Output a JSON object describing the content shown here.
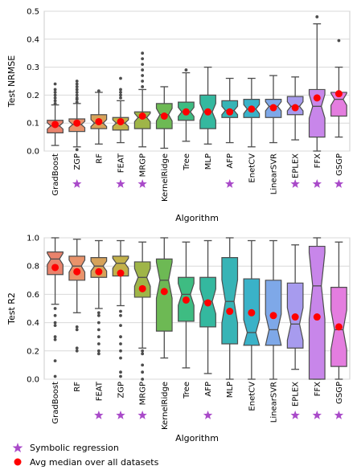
{
  "colors": {
    "median_dot": "#ff0000",
    "symbolic_star": "#a94ac9",
    "box_stroke": "#4d4d4d",
    "palette": [
      "#e9836c",
      "#e9936b",
      "#d6a25a",
      "#c2b14a",
      "#9fb548",
      "#6db954",
      "#3ebc82",
      "#34b89f",
      "#37b4b6",
      "#3ab2c8",
      "#7ea8e8",
      "#a79bee",
      "#c886ea",
      "#e47ddf",
      "#ee83c2"
    ]
  },
  "legend": {
    "symbolic": "Symbolic regression",
    "median": "Avg median over all datasets"
  },
  "chart_data": [
    {
      "type": "box",
      "xlabel": "Algorithm",
      "ylabel": "Test NRMSE",
      "ylim": [
        0,
        0.5
      ],
      "yticks": [
        "0.0",
        "0.1",
        "0.2",
        "0.3",
        "0.4",
        "0.5"
      ],
      "grid": true,
      "notched": true,
      "categories": [
        "GradBoost",
        "ZGP",
        "RF",
        "FEAT",
        "MRGP",
        "KernelRidge",
        "Tree",
        "MLP",
        "AFP",
        "EnetCV",
        "LinearSVR",
        "EPLEX",
        "FFX",
        "GSGP"
      ],
      "symbolic": [
        "ZGP",
        "FEAT",
        "MRGP",
        "AFP",
        "EPLEX",
        "FFX",
        "GSGP"
      ],
      "boxes": [
        {
          "name": "GradBoost",
          "whislo": 0.02,
          "q1": 0.065,
          "med": 0.09,
          "q3": 0.11,
          "whishi": 0.165,
          "mean": 0.095,
          "fliers": [
            0.17,
            0.18,
            0.19,
            0.2,
            0.21,
            0.22,
            0.24
          ]
        },
        {
          "name": "ZGP",
          "whislo": 0.015,
          "q1": 0.07,
          "med": 0.095,
          "q3": 0.115,
          "whishi": 0.17,
          "mean": 0.1,
          "fliers": [
            0.005,
            0.175,
            0.185,
            0.19,
            0.2,
            0.21,
            0.22,
            0.23,
            0.24,
            0.25
          ]
        },
        {
          "name": "RF",
          "whislo": 0.025,
          "q1": 0.08,
          "med": 0.1,
          "q3": 0.13,
          "whishi": 0.21,
          "mean": 0.105,
          "fliers": [
            0.215
          ]
        },
        {
          "name": "FEAT",
          "whislo": 0.03,
          "q1": 0.075,
          "med": 0.1,
          "q3": 0.12,
          "whishi": 0.18,
          "mean": 0.105,
          "fliers": [
            0.19,
            0.2,
            0.21,
            0.22,
            0.26
          ]
        },
        {
          "name": "MRGP",
          "whislo": 0.015,
          "q1": 0.08,
          "med": 0.12,
          "q3": 0.14,
          "whishi": 0.22,
          "mean": 0.125,
          "fliers": [
            0.23,
            0.25,
            0.27,
            0.29,
            0.31,
            0.33,
            0.35
          ]
        },
        {
          "name": "KernelRidge",
          "whislo": 0.01,
          "q1": 0.08,
          "med": 0.13,
          "q3": 0.17,
          "whishi": 0.23,
          "mean": 0.125,
          "fliers": []
        },
        {
          "name": "Tree",
          "whislo": 0.035,
          "q1": 0.11,
          "med": 0.14,
          "q3": 0.175,
          "whishi": 0.28,
          "mean": 0.14,
          "fliers": [
            0.29
          ]
        },
        {
          "name": "MLP",
          "whislo": 0.025,
          "q1": 0.08,
          "med": 0.14,
          "q3": 0.2,
          "whishi": 0.3,
          "mean": 0.14,
          "fliers": []
        },
        {
          "name": "AFP",
          "whislo": 0.03,
          "q1": 0.12,
          "med": 0.145,
          "q3": 0.18,
          "whishi": 0.26,
          "mean": 0.14,
          "fliers": []
        },
        {
          "name": "EnetCV",
          "whislo": 0.015,
          "q1": 0.12,
          "med": 0.15,
          "q3": 0.185,
          "whishi": 0.26,
          "mean": 0.15,
          "fliers": []
        },
        {
          "name": "LinearSVR",
          "whislo": 0.03,
          "q1": 0.12,
          "med": 0.16,
          "q3": 0.185,
          "whishi": 0.27,
          "mean": 0.155,
          "fliers": []
        },
        {
          "name": "EPLEX",
          "whislo": 0.04,
          "q1": 0.13,
          "med": 0.16,
          "q3": 0.195,
          "whishi": 0.265,
          "mean": 0.155,
          "fliers": []
        },
        {
          "name": "FFX",
          "whislo": 0.0,
          "q1": 0.05,
          "med": 0.16,
          "q3": 0.22,
          "whishi": 0.455,
          "mean": 0.19,
          "fliers": [
            0.48
          ]
        },
        {
          "name": "GSGP",
          "whislo": 0.05,
          "q1": 0.125,
          "med": 0.185,
          "q3": 0.21,
          "whishi": 0.3,
          "mean": 0.205,
          "fliers": [
            0.395
          ]
        }
      ]
    },
    {
      "type": "box",
      "xlabel": "Algorithm",
      "ylabel": "Test R2",
      "ylim": [
        0,
        1.0
      ],
      "yticks": [
        "0.0",
        "0.2",
        "0.4",
        "0.6",
        "0.8",
        "1.0"
      ],
      "grid": true,
      "notched": true,
      "categories": [
        "GradBoost",
        "RF",
        "FEAT",
        "ZGP",
        "MRGP",
        "KernelRidge",
        "Tree",
        "AFP",
        "MLP",
        "EnetCV",
        "LinearSVR",
        "EPLEX",
        "FFX",
        "GSGP"
      ],
      "symbolic": [
        "FEAT",
        "ZGP",
        "MRGP",
        "AFP",
        "EPLEX",
        "FFX",
        "GSGP"
      ],
      "boxes": [
        {
          "name": "GradBoost",
          "whislo": 0.53,
          "q1": 0.74,
          "med": 0.85,
          "q3": 0.9,
          "whishi": 1.0,
          "mean": 0.79,
          "fliers": [
            0.5,
            0.45,
            0.4,
            0.38,
            0.3,
            0.28,
            0.13,
            0.02
          ]
        },
        {
          "name": "RF",
          "whislo": 0.47,
          "q1": 0.7,
          "med": 0.8,
          "q3": 0.87,
          "whishi": 0.99,
          "mean": 0.76,
          "fliers": [
            0.37,
            0.35,
            0.22,
            0.2
          ]
        },
        {
          "name": "FEAT",
          "whislo": 0.5,
          "q1": 0.72,
          "med": 0.8,
          "q3": 0.86,
          "whishi": 0.98,
          "mean": 0.76,
          "fliers": [
            0.47,
            0.45,
            0.4,
            0.35,
            0.3,
            0.25,
            0.2,
            0.18
          ]
        },
        {
          "name": "ZGP",
          "whislo": 0.52,
          "q1": 0.73,
          "med": 0.82,
          "q3": 0.87,
          "whishi": 0.98,
          "mean": 0.75,
          "fliers": [
            0.48,
            0.45,
            0.38,
            0.3,
            0.25,
            0.2,
            0.15,
            0.05,
            0.02
          ]
        },
        {
          "name": "MRGP",
          "whislo": 0.22,
          "q1": 0.58,
          "med": 0.72,
          "q3": 0.83,
          "whishi": 0.97,
          "mean": 0.64,
          "fliers": [
            0.2,
            0.18,
            0.1,
            0.05,
            0.0
          ]
        },
        {
          "name": "KernelRidge",
          "whislo": 0.15,
          "q1": 0.34,
          "med": 0.7,
          "q3": 0.85,
          "whishi": 1.0,
          "mean": 0.62,
          "fliers": []
        },
        {
          "name": "Tree",
          "whislo": 0.08,
          "q1": 0.41,
          "med": 0.6,
          "q3": 0.72,
          "whishi": 0.97,
          "mean": 0.56,
          "fliers": []
        },
        {
          "name": "AFP",
          "whislo": 0.04,
          "q1": 0.37,
          "med": 0.55,
          "q3": 0.72,
          "whishi": 0.98,
          "mean": 0.54,
          "fliers": []
        },
        {
          "name": "MLP",
          "whislo": 0.0,
          "q1": 0.25,
          "med": 0.55,
          "q3": 0.86,
          "whishi": 1.0,
          "mean": 0.48,
          "fliers": []
        },
        {
          "name": "EnetCV",
          "whislo": 0.0,
          "q1": 0.24,
          "med": 0.33,
          "q3": 0.71,
          "whishi": 0.98,
          "mean": 0.47,
          "fliers": []
        },
        {
          "name": "LinearSVR",
          "whislo": 0.0,
          "q1": 0.24,
          "med": 0.35,
          "q3": 0.7,
          "whishi": 0.98,
          "mean": 0.45,
          "fliers": []
        },
        {
          "name": "EPLEX",
          "whislo": 0.07,
          "q1": 0.22,
          "med": 0.39,
          "q3": 0.68,
          "whishi": 0.95,
          "mean": 0.44,
          "fliers": []
        },
        {
          "name": "FFX",
          "whislo": 0.0,
          "q1": 0.0,
          "med": 0.66,
          "q3": 0.94,
          "whishi": 1.0,
          "mean": 0.44,
          "fliers": []
        },
        {
          "name": "GSGP",
          "whislo": 0.0,
          "q1": 0.09,
          "med": 0.35,
          "q3": 0.65,
          "whishi": 0.97,
          "mean": 0.37,
          "fliers": []
        }
      ]
    }
  ]
}
